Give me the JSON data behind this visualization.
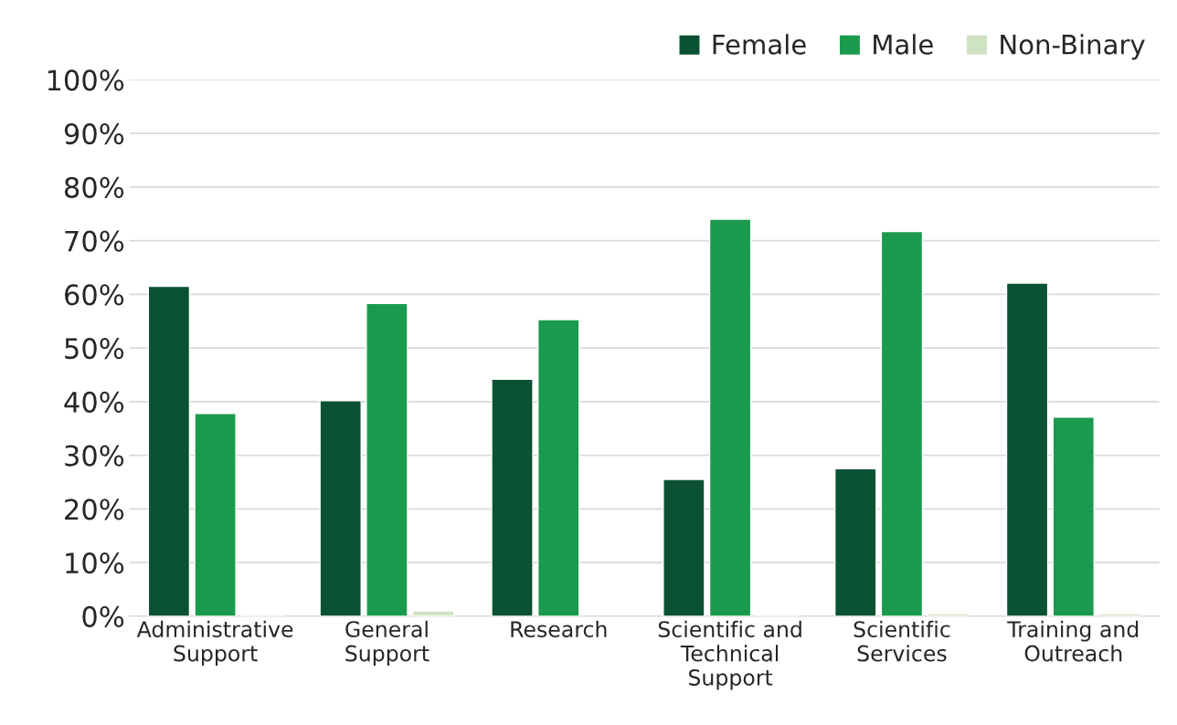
{
  "chart_data": {
    "type": "bar",
    "categories": [
      "Administrative\nSupport",
      "General\nSupport",
      "Research",
      "Scientific and\nTechnical\nSupport",
      "Scientific\nServices",
      "Training and\nOutreach"
    ],
    "series": [
      {
        "name": "Female",
        "color": "#0b5133",
        "values": [
          61.5,
          40.2,
          44.2,
          25.5,
          27.5,
          62.1
        ]
      },
      {
        "name": "Male",
        "color": "#1b9a4e",
        "values": [
          37.8,
          58.3,
          55.3,
          74.0,
          71.7,
          37.1
        ]
      },
      {
        "name": "Non-Binary",
        "color": "#d0e2c4",
        "values": [
          0.3,
          1.0,
          null,
          0.3,
          0.5,
          0.5
        ]
      }
    ],
    "ylim": [
      0,
      100
    ],
    "yticks": [
      {
        "value": 0,
        "label": "0%"
      },
      {
        "value": 10,
        "label": "10%"
      },
      {
        "value": 20,
        "label": "20%"
      },
      {
        "value": 30,
        "label": "30%"
      },
      {
        "value": 40,
        "label": "40%"
      },
      {
        "value": 50,
        "label": "50%"
      },
      {
        "value": 60,
        "label": "60%"
      },
      {
        "value": 70,
        "label": "70%"
      },
      {
        "value": 80,
        "label": "80%"
      },
      {
        "value": 90,
        "label": "90%"
      },
      {
        "value": 100,
        "label": "100%"
      }
    ],
    "grid": "y",
    "legend": "top right"
  }
}
